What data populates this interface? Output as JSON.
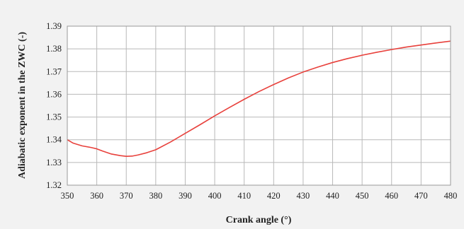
{
  "chart_data": {
    "type": "line",
    "title": "",
    "xlabel": "Crank angle (°)",
    "ylabel": "Adiabatic exponent in the ZWC (-)",
    "xlim": [
      350,
      480
    ],
    "ylim": [
      1.32,
      1.39
    ],
    "xticks": [
      "350",
      "360",
      "370",
      "380",
      "390",
      "400",
      "410",
      "420",
      "430",
      "440",
      "450",
      "460",
      "470",
      "480"
    ],
    "yticks": [
      "1.32",
      "1.33",
      "1.34",
      "1.35",
      "1.36",
      "1.37",
      "1.38",
      "1.39"
    ],
    "grid": true,
    "legend": "none",
    "series": [
      {
        "color": "#e8413c",
        "x": [
          350,
          352,
          355,
          358,
          360,
          362,
          365,
          368,
          370,
          372,
          374,
          377,
          380,
          385,
          390,
          395,
          400,
          405,
          410,
          415,
          420,
          425,
          430,
          435,
          440,
          445,
          450,
          455,
          460,
          465,
          470,
          475,
          480
        ],
        "y": [
          1.34,
          1.3385,
          1.3373,
          1.3366,
          1.336,
          1.335,
          1.3337,
          1.333,
          1.3327,
          1.3328,
          1.3333,
          1.3343,
          1.3356,
          1.339,
          1.3428,
          1.3466,
          1.3505,
          1.3542,
          1.3578,
          1.3612,
          1.3643,
          1.3672,
          1.3698,
          1.372,
          1.374,
          1.3757,
          1.3772,
          1.3785,
          1.3797,
          1.3808,
          1.3817,
          1.3826,
          1.3834
        ]
      }
    ]
  }
}
